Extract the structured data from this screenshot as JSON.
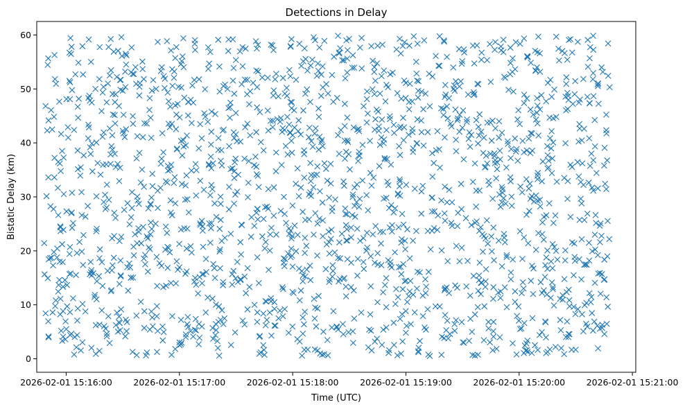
{
  "chart_data": {
    "type": "scatter",
    "title": "Detections in Delay",
    "xlabel": "Time (UTC)",
    "ylabel": "Bistatic Delay (km)",
    "marker": "x",
    "color": "#1f77b4",
    "x_start_time": "2026-02-01 15:16:00",
    "xlim_minutes": [
      -0.26,
      5.03
    ],
    "ylim": [
      -2.5,
      62.5
    ],
    "x_data_range_minutes": [
      -0.2,
      4.8
    ],
    "y_data_range": [
      0.5,
      59.9
    ],
    "point_count": 1800,
    "point_distribution": "uniform random scatter over the data range",
    "x_ticks_minutes": [
      0,
      1,
      2,
      3,
      4,
      5
    ],
    "x_tick_labels": [
      "2026-02-01 15:16:00",
      "2026-02-01 15:17:00",
      "2026-02-01 15:18:00",
      "2026-02-01 15:19:00",
      "2026-02-01 15:20:00",
      "2026-02-01 15:21:00"
    ],
    "y_ticks": [
      0,
      10,
      20,
      30,
      40,
      50,
      60
    ],
    "y_tick_labels": [
      "0",
      "10",
      "20",
      "30",
      "40",
      "50",
      "60"
    ],
    "grid": false,
    "legend": "none"
  }
}
